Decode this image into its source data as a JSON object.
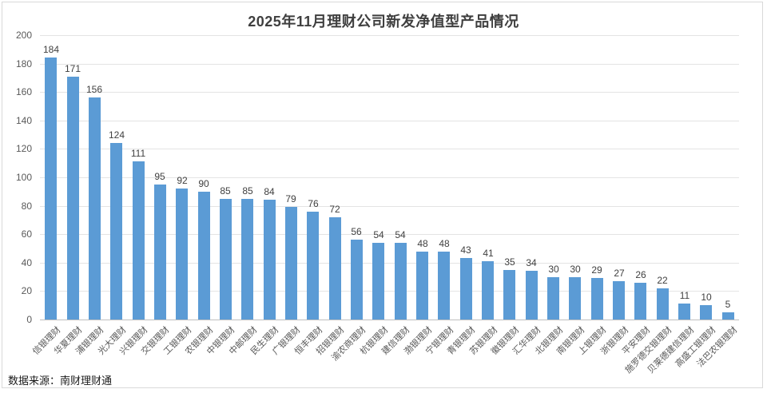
{
  "title": "2025年11月理财公司新发净值型产品情况",
  "source_note": "数据来源：南财理财通",
  "colors": {
    "bar": "#5b9bd5",
    "gridline": "#e4e4e4",
    "axis_line": "#bfbfbf",
    "title_text": "#3f3f3f",
    "tick_text": "#595959",
    "value_label_text": "#404040",
    "frame_border": "#d9d9d9"
  },
  "chart_data": {
    "type": "bar",
    "title": "2025年11月理财公司新发净值型产品情况",
    "categories": [
      "信银理财",
      "华夏理财",
      "浦银理财",
      "光大理财",
      "兴银理财",
      "交银理财",
      "工银理财",
      "农银理财",
      "中银理财",
      "中邮理财",
      "民生理财",
      "广银理财",
      "恒丰理财",
      "招银理财",
      "渝农商理财",
      "杭银理财",
      "建信理财",
      "渤银理财",
      "宁银理财",
      "青银理财",
      "苏银理财",
      "徽银理财",
      "汇华理财",
      "北银理财",
      "南银理财",
      "上银理财",
      "浙银理财",
      "平安理财",
      "施罗德交银理财",
      "贝莱德建信理财",
      "高盛工银理财",
      "法巴农银理财"
    ],
    "values": [
      184,
      171,
      156,
      124,
      111,
      95,
      92,
      90,
      85,
      85,
      84,
      79,
      76,
      72,
      56,
      54,
      54,
      48,
      48,
      43,
      41,
      35,
      34,
      30,
      30,
      29,
      27,
      26,
      22,
      11,
      10,
      5
    ],
    "xlabel": "",
    "ylabel": "",
    "ylim": [
      0,
      200
    ],
    "yticks": [
      0,
      20,
      40,
      60,
      80,
      100,
      120,
      140,
      160,
      180,
      200
    ],
    "grid": true,
    "value_labels": true,
    "xlabel_rotation_deg": -45,
    "legend": "none",
    "source": "数据来源：南财理财通"
  }
}
